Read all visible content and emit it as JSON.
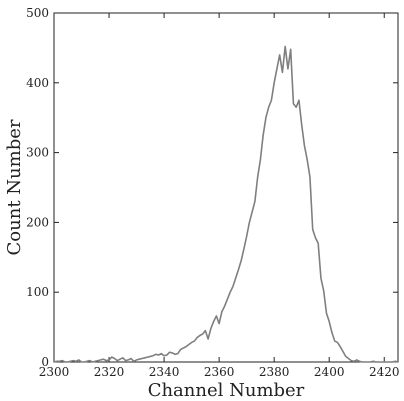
{
  "chart_data": {
    "type": "line",
    "xlabel": "Channel Number",
    "ylabel": "Count Number",
    "xlim": [
      2300,
      2425
    ],
    "ylim": [
      0,
      500
    ],
    "x_ticks": [
      2300,
      2320,
      2340,
      2360,
      2380,
      2400,
      2420
    ],
    "y_ticks": [
      0,
      100,
      200,
      300,
      400,
      500
    ],
    "grid": false,
    "series": [
      {
        "color": "#7f7f7f",
        "x": [
          2300,
          2301,
          2302,
          2303,
          2304,
          2305,
          2306,
          2307,
          2308,
          2309,
          2310,
          2311,
          2312,
          2313,
          2314,
          2315,
          2316,
          2317,
          2318,
          2319,
          2320,
          2321,
          2322,
          2323,
          2324,
          2325,
          2326,
          2327,
          2328,
          2329,
          2330,
          2331,
          2332,
          2333,
          2334,
          2335,
          2336,
          2337,
          2338,
          2339,
          2340,
          2341,
          2342,
          2343,
          2344,
          2345,
          2346,
          2347,
          2348,
          2349,
          2350,
          2351,
          2352,
          2353,
          2354,
          2355,
          2356,
          2357,
          2358,
          2359,
          2360,
          2361,
          2362,
          2363,
          2364,
          2365,
          2366,
          2367,
          2368,
          2369,
          2370,
          2371,
          2372,
          2373,
          2374,
          2375,
          2376,
          2377,
          2378,
          2379,
          2380,
          2381,
          2382,
          2383,
          2384,
          2385,
          2386,
          2387,
          2388,
          2389,
          2390,
          2391,
          2392,
          2393,
          2394,
          2395,
          2396,
          2397,
          2398,
          2399,
          2400,
          2401,
          2402,
          2403,
          2404,
          2405,
          2406,
          2407,
          2408,
          2409,
          2410,
          2411,
          2412,
          2413,
          2414,
          2415,
          2416,
          2417,
          2418,
          2419,
          2420,
          2421,
          2422,
          2423,
          2424,
          2425
        ],
        "y": [
          0,
          1,
          1,
          2,
          0,
          0,
          1,
          2,
          1,
          3,
          0,
          0,
          1,
          2,
          0,
          1,
          2,
          3,
          4,
          2,
          3,
          7,
          5,
          2,
          4,
          6,
          2,
          3,
          5,
          1,
          3,
          4,
          5,
          6,
          7,
          8,
          9,
          11,
          10,
          12,
          9,
          10,
          14,
          13,
          11,
          12,
          18,
          20,
          22,
          25,
          28,
          30,
          35,
          38,
          40,
          45,
          33,
          48,
          58,
          66,
          55,
          72,
          80,
          90,
          100,
          108,
          120,
          132,
          145,
          162,
          180,
          200,
          215,
          230,
          265,
          290,
          325,
          350,
          365,
          375,
          400,
          420,
          440,
          415,
          452,
          420,
          448,
          370,
          365,
          375,
          340,
          310,
          290,
          265,
          190,
          178,
          170,
          120,
          102,
          70,
          58,
          42,
          30,
          28,
          22,
          15,
          8,
          5,
          2,
          1,
          3,
          1,
          0,
          0,
          0,
          0,
          1,
          0,
          0,
          0,
          0,
          0,
          0,
          0,
          1,
          0
        ]
      }
    ]
  }
}
